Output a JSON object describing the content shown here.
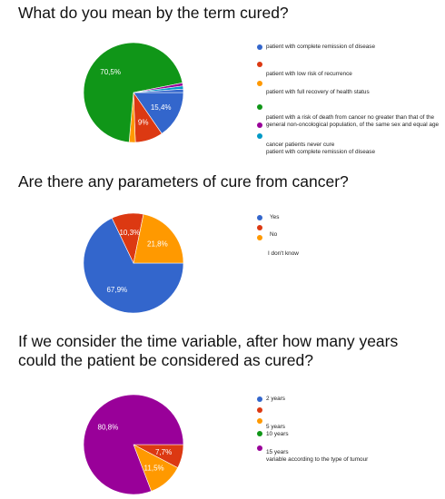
{
  "chart_data": [
    {
      "type": "pie",
      "title": "What do you mean by the term cured?",
      "slices": [
        {
          "label": "15,4%",
          "value": 15.4,
          "color": "#3366cc"
        },
        {
          "label": "9%",
          "value": 9.0,
          "color": "#dc3912"
        },
        {
          "label": "",
          "value": 2.0,
          "color": "#ff9900"
        },
        {
          "label": "70,5%",
          "value": 70.5,
          "color": "#109618"
        },
        {
          "label": "",
          "value": 1.0,
          "color": "#990099"
        },
        {
          "label": "",
          "value": 1.0,
          "color": "#0099c6"
        },
        {
          "label": "",
          "value": 1.1,
          "color": "#3366cc"
        }
      ],
      "legend": [
        {
          "text": "patient with complete remission of disease",
          "color": "#3366cc"
        },
        {
          "text": "patient with low risk of recurrence",
          "color": "#dc3912"
        },
        {
          "text": "patient with full recovery of health status",
          "color": "#ff9900"
        },
        {
          "text": "patient with a risk of death from cancer no greater than that of the",
          "color": "#109618"
        },
        {
          "text": "general non-oncological population, of the same sex and equal age",
          "color": "#990099"
        },
        {
          "text": "cancer patients never cure",
          "color": "#0099c6"
        },
        {
          "text": "patient with complete remission of disease",
          "color": ""
        }
      ],
      "legend_position": "right"
    },
    {
      "type": "pie",
      "title": "Are there any parameters of cure from cancer?",
      "slices": [
        {
          "label": "67,9%",
          "value": 67.9,
          "color": "#3366cc"
        },
        {
          "label": "10,3%",
          "value": 10.3,
          "color": "#dc3912"
        },
        {
          "label": "21,8%",
          "value": 21.8,
          "color": "#ff9900"
        }
      ],
      "legend": [
        {
          "text": "Yes",
          "color": "#3366cc"
        },
        {
          "text": "",
          "color": "#dc3912"
        },
        {
          "text": "No",
          "color": "#ff9900"
        },
        {
          "text": "I don't know",
          "color": ""
        }
      ],
      "legend_position": "right"
    },
    {
      "type": "pie",
      "title": "If we consider the time variable, after how many years could the patient be considered as cured?",
      "slices": [
        {
          "label": "7,7%",
          "value": 7.7,
          "color": "#dc3912"
        },
        {
          "label": "11,5%",
          "value": 11.5,
          "color": "#ff9900"
        },
        {
          "label": "80,8%",
          "value": 80.8,
          "color": "#990099"
        }
      ],
      "legend": [
        {
          "text": "2 years",
          "color": "#3366cc"
        },
        {
          "text": "",
          "color": "#dc3912"
        },
        {
          "text": "5 years",
          "color": "#ff9900"
        },
        {
          "text": "10 years",
          "color": "#109618"
        },
        {
          "text": "15 years",
          "color": "#990099"
        },
        {
          "text": "variable according to the type of tumour",
          "color": ""
        }
      ],
      "legend_position": "right"
    }
  ]
}
